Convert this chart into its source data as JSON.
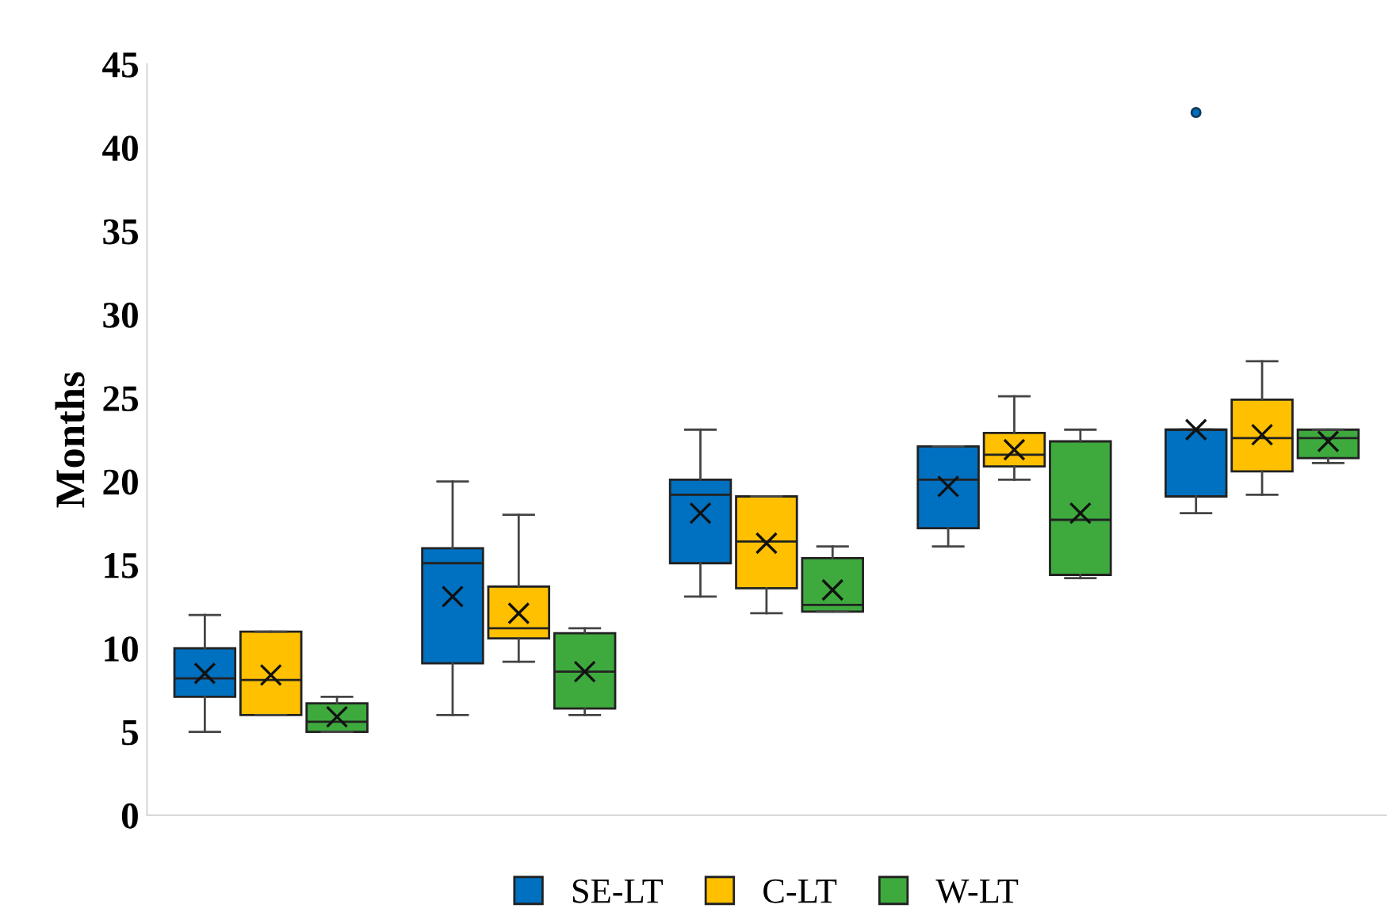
{
  "chart_data": {
    "type": "box",
    "ylabel": "Months",
    "categories": [
      null,
      null,
      null,
      null,
      null
    ],
    "ylim": [
      0,
      45
    ],
    "yticks": [
      0,
      5,
      10,
      15,
      20,
      25,
      30,
      35,
      40,
      45
    ],
    "grid": false,
    "legend": "bottom",
    "series": [
      {
        "name": "SE-LT",
        "color": "#0070c0",
        "boxes": [
          {
            "low": 5,
            "q1": 7.1,
            "median": 8.2,
            "q3": 10,
            "high": 12,
            "mean": 8.5
          },
          {
            "low": 6,
            "q1": 9.1,
            "median": 15.1,
            "q3": 16,
            "high": 20,
            "mean": 13.1
          },
          {
            "low": 13.1,
            "q1": 15.1,
            "median": 19.2,
            "q3": 20.1,
            "high": 23.1,
            "mean": 18.1
          },
          {
            "low": 16.1,
            "q1": 17.2,
            "median": 20.1,
            "q3": 22.1,
            "high": 22.1,
            "mean": 19.7
          },
          {
            "low": 18.1,
            "q1": 19.1,
            "median": 23.1,
            "q3": 23.1,
            "high": 23.1,
            "mean": 23.1,
            "outliers": [
              42.1
            ]
          }
        ]
      },
      {
        "name": "C-LT",
        "color": "#ffc000",
        "boxes": [
          {
            "low": 6,
            "q1": 6,
            "median": 8.1,
            "q3": 11,
            "high": 11,
            "mean": 8.4
          },
          {
            "low": 9.2,
            "q1": 10.6,
            "median": 11.2,
            "q3": 13.7,
            "high": 18,
            "mean": 12.1
          },
          {
            "low": 12.1,
            "q1": 13.6,
            "median": 16.4,
            "q3": 19.1,
            "high": 19.1,
            "mean": 16.3
          },
          {
            "low": 20.1,
            "q1": 20.9,
            "median": 21.6,
            "q3": 22.9,
            "high": 25.1,
            "mean": 21.9
          },
          {
            "low": 19.2,
            "q1": 20.6,
            "median": 22.6,
            "q3": 24.9,
            "high": 27.2,
            "mean": 22.8
          }
        ]
      },
      {
        "name": "W-LT",
        "color": "#3eaa3e",
        "boxes": [
          {
            "low": 5,
            "q1": 5,
            "median": 5.6,
            "q3": 6.7,
            "high": 7.1,
            "mean": 5.9
          },
          {
            "low": 6,
            "q1": 6.4,
            "median": 8.6,
            "q3": 10.9,
            "high": 11.2,
            "mean": 8.6
          },
          {
            "low": 12.2,
            "q1": 12.2,
            "median": 12.6,
            "q3": 15.4,
            "high": 16.1,
            "mean": 13.5
          },
          {
            "low": 14.2,
            "q1": 14.4,
            "median": 17.7,
            "q3": 22.4,
            "high": 23.1,
            "mean": 18.1
          },
          {
            "low": 21.1,
            "q1": 21.4,
            "median": 22.6,
            "q3": 23.1,
            "high": 23.1,
            "mean": 22.4
          }
        ]
      }
    ]
  }
}
